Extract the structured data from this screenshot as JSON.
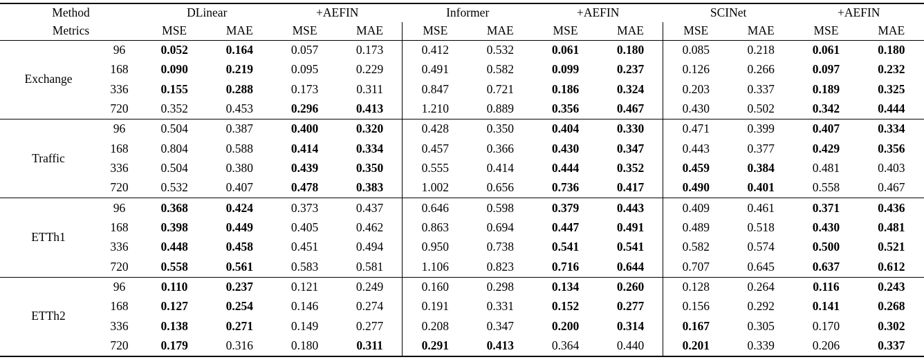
{
  "table": {
    "corner": {
      "method": "Method",
      "metrics": "Metrics"
    },
    "groups": [
      {
        "label": "DLinear"
      },
      {
        "label": "+AEFIN"
      },
      {
        "label": "Informer"
      },
      {
        "label": "+AEFIN"
      },
      {
        "label": "SCINet"
      },
      {
        "label": "+AEFIN"
      }
    ],
    "metric_labels": [
      "MSE",
      "MAE",
      "MSE",
      "MAE",
      "MSE",
      "MAE",
      "MSE",
      "MAE",
      "MSE",
      "MAE",
      "MSE",
      "MAE"
    ],
    "datasets": [
      {
        "name": "Exchange",
        "rows": [
          {
            "horizon": "96",
            "cells": [
              {
                "v": "0.052",
                "b": true
              },
              {
                "v": "0.164",
                "b": true
              },
              {
                "v": "0.057",
                "b": false
              },
              {
                "v": "0.173",
                "b": false
              },
              {
                "v": "0.412",
                "b": false
              },
              {
                "v": "0.532",
                "b": false
              },
              {
                "v": "0.061",
                "b": true
              },
              {
                "v": "0.180",
                "b": true
              },
              {
                "v": "0.085",
                "b": false
              },
              {
                "v": "0.218",
                "b": false
              },
              {
                "v": "0.061",
                "b": true
              },
              {
                "v": "0.180",
                "b": true
              }
            ]
          },
          {
            "horizon": "168",
            "cells": [
              {
                "v": "0.090",
                "b": true
              },
              {
                "v": "0.219",
                "b": true
              },
              {
                "v": "0.095",
                "b": false
              },
              {
                "v": "0.229",
                "b": false
              },
              {
                "v": "0.491",
                "b": false
              },
              {
                "v": "0.582",
                "b": false
              },
              {
                "v": "0.099",
                "b": true
              },
              {
                "v": "0.237",
                "b": true
              },
              {
                "v": "0.126",
                "b": false
              },
              {
                "v": "0.266",
                "b": false
              },
              {
                "v": "0.097",
                "b": true
              },
              {
                "v": "0.232",
                "b": true
              }
            ]
          },
          {
            "horizon": "336",
            "cells": [
              {
                "v": "0.155",
                "b": true
              },
              {
                "v": "0.288",
                "b": true
              },
              {
                "v": "0.173",
                "b": false
              },
              {
                "v": "0.311",
                "b": false
              },
              {
                "v": "0.847",
                "b": false
              },
              {
                "v": "0.721",
                "b": false
              },
              {
                "v": "0.186",
                "b": true
              },
              {
                "v": "0.324",
                "b": true
              },
              {
                "v": "0.203",
                "b": false
              },
              {
                "v": "0.337",
                "b": false
              },
              {
                "v": "0.189",
                "b": true
              },
              {
                "v": "0.325",
                "b": true
              }
            ]
          },
          {
            "horizon": "720",
            "cells": [
              {
                "v": "0.352",
                "b": false
              },
              {
                "v": "0.453",
                "b": false
              },
              {
                "v": "0.296",
                "b": true
              },
              {
                "v": "0.413",
                "b": true
              },
              {
                "v": "1.210",
                "b": false
              },
              {
                "v": "0.889",
                "b": false
              },
              {
                "v": "0.356",
                "b": true
              },
              {
                "v": "0.467",
                "b": true
              },
              {
                "v": "0.430",
                "b": false
              },
              {
                "v": "0.502",
                "b": false
              },
              {
                "v": "0.342",
                "b": true
              },
              {
                "v": "0.444",
                "b": true
              }
            ]
          }
        ]
      },
      {
        "name": "Traffic",
        "rows": [
          {
            "horizon": "96",
            "cells": [
              {
                "v": "0.504",
                "b": false
              },
              {
                "v": "0.387",
                "b": false
              },
              {
                "v": "0.400",
                "b": true
              },
              {
                "v": "0.320",
                "b": true
              },
              {
                "v": "0.428",
                "b": false
              },
              {
                "v": "0.350",
                "b": false
              },
              {
                "v": "0.404",
                "b": true
              },
              {
                "v": "0.330",
                "b": true
              },
              {
                "v": "0.471",
                "b": false
              },
              {
                "v": "0.399",
                "b": false
              },
              {
                "v": "0.407",
                "b": true
              },
              {
                "v": "0.334",
                "b": true
              }
            ]
          },
          {
            "horizon": "168",
            "cells": [
              {
                "v": "0.804",
                "b": false
              },
              {
                "v": "0.588",
                "b": false
              },
              {
                "v": "0.414",
                "b": true
              },
              {
                "v": "0.334",
                "b": true
              },
              {
                "v": "0.457",
                "b": false
              },
              {
                "v": "0.366",
                "b": false
              },
              {
                "v": "0.430",
                "b": true
              },
              {
                "v": "0.347",
                "b": true
              },
              {
                "v": "0.443",
                "b": false
              },
              {
                "v": "0.377",
                "b": false
              },
              {
                "v": "0.429",
                "b": true
              },
              {
                "v": "0.356",
                "b": true
              }
            ]
          },
          {
            "horizon": "336",
            "cells": [
              {
                "v": "0.504",
                "b": false
              },
              {
                "v": "0.380",
                "b": false
              },
              {
                "v": "0.439",
                "b": true
              },
              {
                "v": "0.350",
                "b": true
              },
              {
                "v": "0.555",
                "b": false
              },
              {
                "v": "0.414",
                "b": false
              },
              {
                "v": "0.444",
                "b": true
              },
              {
                "v": "0.352",
                "b": true
              },
              {
                "v": "0.459",
                "b": true
              },
              {
                "v": "0.384",
                "b": true
              },
              {
                "v": "0.481",
                "b": false
              },
              {
                "v": "0.403",
                "b": false
              }
            ]
          },
          {
            "horizon": "720",
            "cells": [
              {
                "v": "0.532",
                "b": false
              },
              {
                "v": "0.407",
                "b": false
              },
              {
                "v": "0.478",
                "b": true
              },
              {
                "v": "0.383",
                "b": true
              },
              {
                "v": "1.002",
                "b": false
              },
              {
                "v": "0.656",
                "b": false
              },
              {
                "v": "0.736",
                "b": true
              },
              {
                "v": "0.417",
                "b": true
              },
              {
                "v": "0.490",
                "b": true
              },
              {
                "v": "0.401",
                "b": true
              },
              {
                "v": "0.558",
                "b": false
              },
              {
                "v": "0.467",
                "b": false
              }
            ]
          }
        ]
      },
      {
        "name": "ETTh1",
        "rows": [
          {
            "horizon": "96",
            "cells": [
              {
                "v": "0.368",
                "b": true
              },
              {
                "v": "0.424",
                "b": true
              },
              {
                "v": "0.373",
                "b": false
              },
              {
                "v": "0.437",
                "b": false
              },
              {
                "v": "0.646",
                "b": false
              },
              {
                "v": "0.598",
                "b": false
              },
              {
                "v": "0.379",
                "b": true
              },
              {
                "v": "0.443",
                "b": true
              },
              {
                "v": "0.409",
                "b": false
              },
              {
                "v": "0.461",
                "b": false
              },
              {
                "v": "0.371",
                "b": true
              },
              {
                "v": "0.436",
                "b": true
              }
            ]
          },
          {
            "horizon": "168",
            "cells": [
              {
                "v": "0.398",
                "b": true
              },
              {
                "v": "0.449",
                "b": true
              },
              {
                "v": "0.405",
                "b": false
              },
              {
                "v": "0.462",
                "b": false
              },
              {
                "v": "0.863",
                "b": false
              },
              {
                "v": "0.694",
                "b": false
              },
              {
                "v": "0.447",
                "b": true
              },
              {
                "v": "0.491",
                "b": true
              },
              {
                "v": "0.489",
                "b": false
              },
              {
                "v": "0.518",
                "b": false
              },
              {
                "v": "0.430",
                "b": true
              },
              {
                "v": "0.481",
                "b": true
              }
            ]
          },
          {
            "horizon": "336",
            "cells": [
              {
                "v": "0.448",
                "b": true
              },
              {
                "v": "0.458",
                "b": true
              },
              {
                "v": "0.451",
                "b": false
              },
              {
                "v": "0.494",
                "b": false
              },
              {
                "v": "0.950",
                "b": false
              },
              {
                "v": "0.738",
                "b": false
              },
              {
                "v": "0.541",
                "b": true
              },
              {
                "v": "0.541",
                "b": true
              },
              {
                "v": "0.582",
                "b": false
              },
              {
                "v": "0.574",
                "b": false
              },
              {
                "v": "0.500",
                "b": true
              },
              {
                "v": "0.521",
                "b": true
              }
            ]
          },
          {
            "horizon": "720",
            "cells": [
              {
                "v": "0.558",
                "b": true
              },
              {
                "v": "0.561",
                "b": true
              },
              {
                "v": "0.583",
                "b": false
              },
              {
                "v": "0.581",
                "b": false
              },
              {
                "v": "1.106",
                "b": false
              },
              {
                "v": "0.823",
                "b": false
              },
              {
                "v": "0.716",
                "b": true
              },
              {
                "v": "0.644",
                "b": true
              },
              {
                "v": "0.707",
                "b": false
              },
              {
                "v": "0.645",
                "b": false
              },
              {
                "v": "0.637",
                "b": true
              },
              {
                "v": "0.612",
                "b": true
              }
            ]
          }
        ]
      },
      {
        "name": "ETTh2",
        "rows": [
          {
            "horizon": "96",
            "cells": [
              {
                "v": "0.110",
                "b": true
              },
              {
                "v": "0.237",
                "b": true
              },
              {
                "v": "0.121",
                "b": false
              },
              {
                "v": "0.249",
                "b": false
              },
              {
                "v": "0.160",
                "b": false
              },
              {
                "v": "0.298",
                "b": false
              },
              {
                "v": "0.134",
                "b": true
              },
              {
                "v": "0.260",
                "b": true
              },
              {
                "v": "0.128",
                "b": false
              },
              {
                "v": "0.264",
                "b": false
              },
              {
                "v": "0.116",
                "b": true
              },
              {
                "v": "0.243",
                "b": true
              }
            ]
          },
          {
            "horizon": "168",
            "cells": [
              {
                "v": "0.127",
                "b": true
              },
              {
                "v": "0.254",
                "b": true
              },
              {
                "v": "0.146",
                "b": false
              },
              {
                "v": "0.274",
                "b": false
              },
              {
                "v": "0.191",
                "b": false
              },
              {
                "v": "0.331",
                "b": false
              },
              {
                "v": "0.152",
                "b": true
              },
              {
                "v": "0.277",
                "b": true
              },
              {
                "v": "0.156",
                "b": false
              },
              {
                "v": "0.292",
                "b": false
              },
              {
                "v": "0.141",
                "b": true
              },
              {
                "v": "0.268",
                "b": true
              }
            ]
          },
          {
            "horizon": "336",
            "cells": [
              {
                "v": "0.138",
                "b": true
              },
              {
                "v": "0.271",
                "b": true
              },
              {
                "v": "0.149",
                "b": false
              },
              {
                "v": "0.277",
                "b": false
              },
              {
                "v": "0.208",
                "b": false
              },
              {
                "v": "0.347",
                "b": false
              },
              {
                "v": "0.200",
                "b": true
              },
              {
                "v": "0.314",
                "b": true
              },
              {
                "v": "0.167",
                "b": true
              },
              {
                "v": "0.305",
                "b": false
              },
              {
                "v": "0.170",
                "b": false
              },
              {
                "v": "0.302",
                "b": true
              }
            ]
          },
          {
            "horizon": "720",
            "cells": [
              {
                "v": "0.179",
                "b": true
              },
              {
                "v": "0.316",
                "b": false
              },
              {
                "v": "0.180",
                "b": false
              },
              {
                "v": "0.311",
                "b": true
              },
              {
                "v": "0.291",
                "b": true
              },
              {
                "v": "0.413",
                "b": true
              },
              {
                "v": "0.364",
                "b": false
              },
              {
                "v": "0.440",
                "b": false
              },
              {
                "v": "0.201",
                "b": true
              },
              {
                "v": "0.339",
                "b": false
              },
              {
                "v": "0.206",
                "b": false
              },
              {
                "v": "0.337",
                "b": true
              }
            ]
          }
        ]
      }
    ]
  }
}
